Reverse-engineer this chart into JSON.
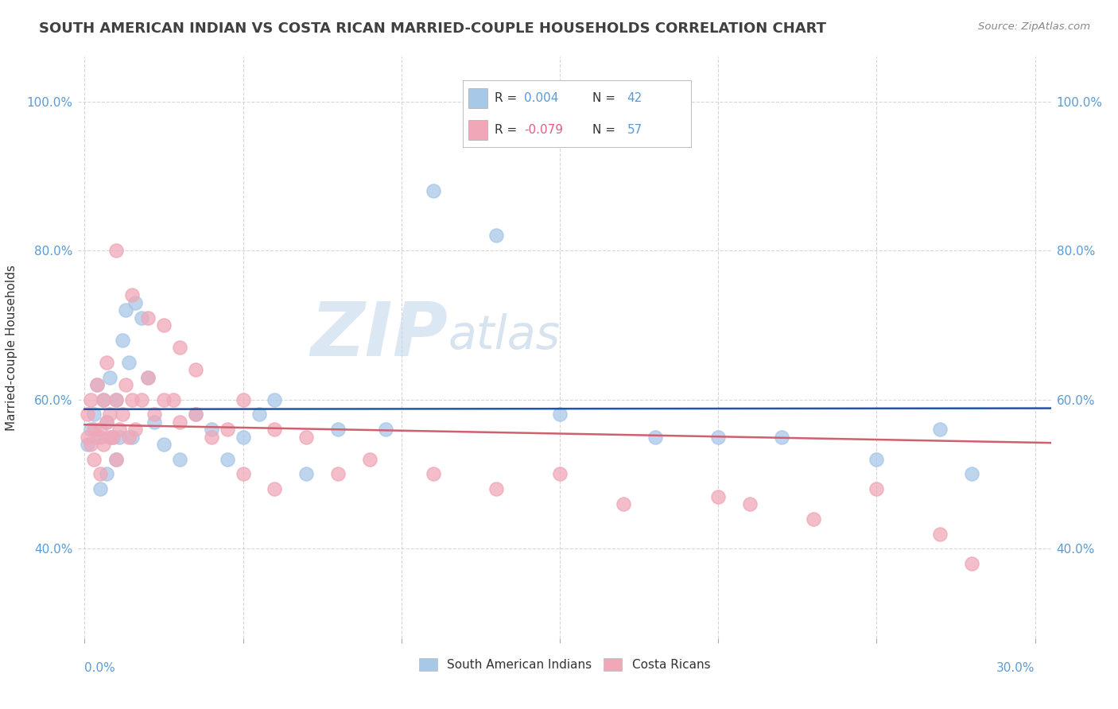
{
  "title": "SOUTH AMERICAN INDIAN VS COSTA RICAN MARRIED-COUPLE HOUSEHOLDS CORRELATION CHART",
  "source": "Source: ZipAtlas.com",
  "ylabel": "Married-couple Households",
  "ytick_labels": [
    "40.0%",
    "60.0%",
    "80.0%",
    "100.0%"
  ],
  "ytick_values": [
    0.4,
    0.6,
    0.8,
    1.0
  ],
  "xlim": [
    -0.002,
    0.305
  ],
  "ylim": [
    0.28,
    1.06
  ],
  "legend_label1": "South American Indians",
  "legend_label2": "Costa Ricans",
  "r1": 0.004,
  "n1": 42,
  "r2": -0.079,
  "n2": 57,
  "color_blue": "#A8C8E8",
  "color_pink": "#F0A8B8",
  "line_color_blue": "#2255AA",
  "line_color_pink": "#D06070",
  "watermark_zip": "ZIP",
  "watermark_atlas": "atlas",
  "blue_x": [
    0.001,
    0.002,
    0.003,
    0.004,
    0.005,
    0.006,
    0.007,
    0.008,
    0.009,
    0.01,
    0.011,
    0.012,
    0.013,
    0.014,
    0.015,
    0.016,
    0.018,
    0.02,
    0.022,
    0.025,
    0.03,
    0.035,
    0.04,
    0.045,
    0.05,
    0.055,
    0.06,
    0.07,
    0.08,
    0.095,
    0.11,
    0.13,
    0.15,
    0.18,
    0.2,
    0.22,
    0.25,
    0.27,
    0.28,
    0.005,
    0.007,
    0.01
  ],
  "blue_y": [
    0.54,
    0.56,
    0.58,
    0.62,
    0.55,
    0.6,
    0.57,
    0.63,
    0.55,
    0.6,
    0.55,
    0.68,
    0.72,
    0.65,
    0.55,
    0.73,
    0.71,
    0.63,
    0.57,
    0.54,
    0.52,
    0.58,
    0.56,
    0.52,
    0.55,
    0.58,
    0.6,
    0.5,
    0.56,
    0.56,
    0.88,
    0.82,
    0.58,
    0.55,
    0.55,
    0.55,
    0.52,
    0.56,
    0.5,
    0.48,
    0.5,
    0.52
  ],
  "pink_x": [
    0.001,
    0.001,
    0.002,
    0.002,
    0.003,
    0.003,
    0.004,
    0.004,
    0.005,
    0.005,
    0.006,
    0.006,
    0.007,
    0.007,
    0.008,
    0.008,
    0.009,
    0.01,
    0.01,
    0.011,
    0.012,
    0.013,
    0.014,
    0.015,
    0.016,
    0.018,
    0.02,
    0.022,
    0.025,
    0.028,
    0.03,
    0.035,
    0.04,
    0.045,
    0.05,
    0.06,
    0.07,
    0.08,
    0.09,
    0.11,
    0.13,
    0.15,
    0.17,
    0.2,
    0.21,
    0.23,
    0.25,
    0.27,
    0.28,
    0.01,
    0.015,
    0.02,
    0.025,
    0.03,
    0.035,
    0.05,
    0.06
  ],
  "pink_y": [
    0.55,
    0.58,
    0.54,
    0.6,
    0.52,
    0.56,
    0.55,
    0.62,
    0.5,
    0.56,
    0.54,
    0.6,
    0.57,
    0.65,
    0.58,
    0.55,
    0.55,
    0.52,
    0.6,
    0.56,
    0.58,
    0.62,
    0.55,
    0.6,
    0.56,
    0.6,
    0.63,
    0.58,
    0.6,
    0.6,
    0.57,
    0.58,
    0.55,
    0.56,
    0.6,
    0.56,
    0.55,
    0.5,
    0.52,
    0.5,
    0.48,
    0.5,
    0.46,
    0.47,
    0.46,
    0.44,
    0.48,
    0.42,
    0.38,
    0.8,
    0.74,
    0.71,
    0.7,
    0.67,
    0.64,
    0.5,
    0.48
  ]
}
